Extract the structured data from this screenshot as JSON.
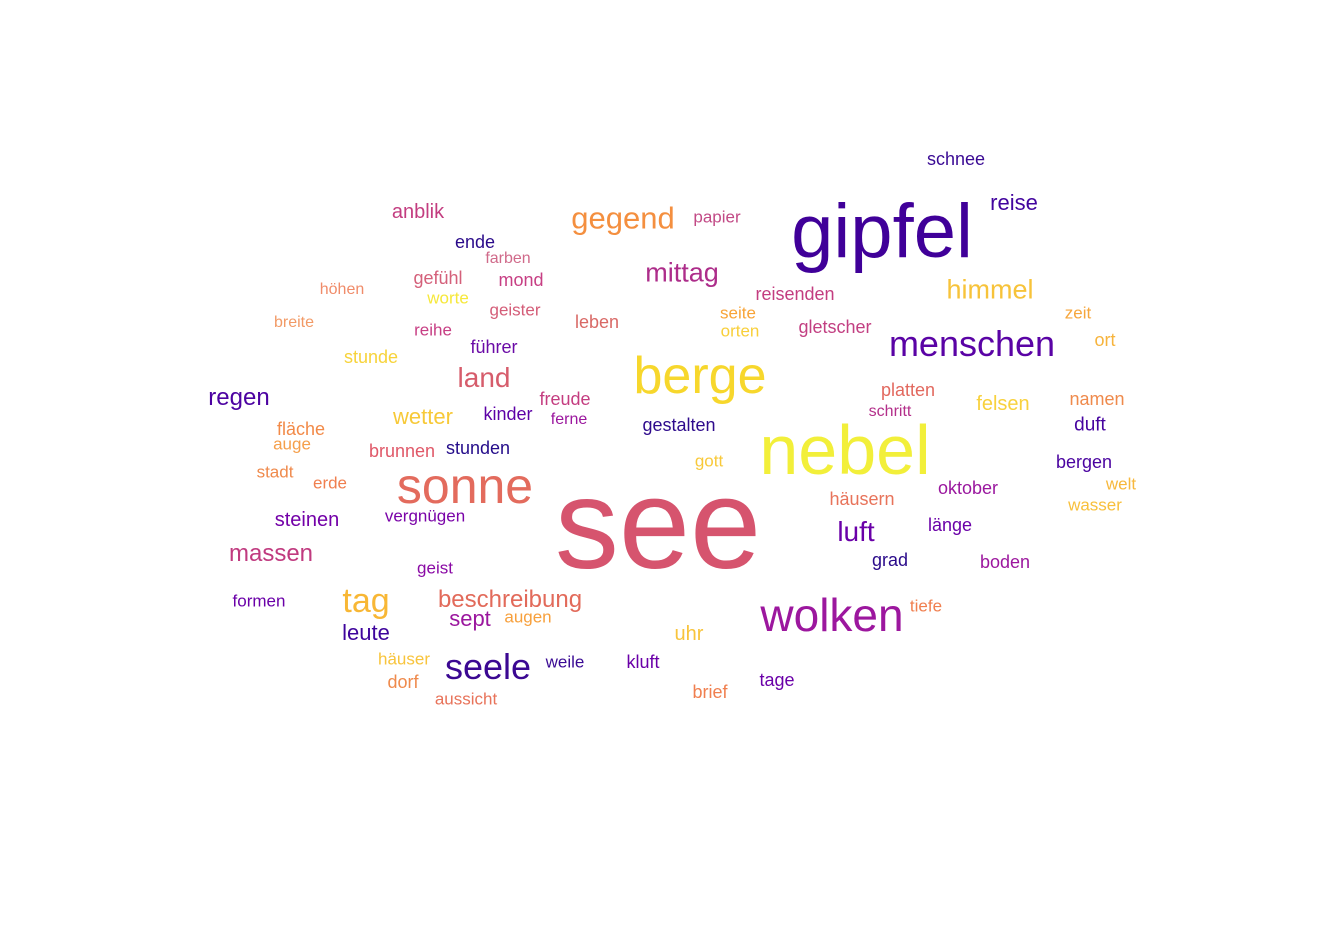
{
  "words": [
    {
      "text": "see",
      "color": "#d6546e"
    },
    {
      "text": "nebel",
      "color": "#f2ef3a"
    },
    {
      "text": "gipfel",
      "color": "#400099"
    },
    {
      "text": "berge",
      "color": "#f7d72c"
    },
    {
      "text": "sonne",
      "color": "#e36b5d"
    },
    {
      "text": "wolken",
      "color": "#9c179e"
    },
    {
      "text": "menschen",
      "color": "#5a03a5"
    },
    {
      "text": "seele",
      "color": "#3b0892"
    },
    {
      "text": "gegend",
      "color": "#f48f3f"
    },
    {
      "text": "tag",
      "color": "#f8b735"
    },
    {
      "text": "mittag",
      "color": "#ad2d8a"
    },
    {
      "text": "himmel",
      "color": "#f7c33a"
    },
    {
      "text": "land",
      "color": "#d65c6b"
    },
    {
      "text": "luft",
      "color": "#6a00a8"
    },
    {
      "text": "massen",
      "color": "#c03a7f"
    },
    {
      "text": "beschreibung",
      "color": "#e26a5a"
    },
    {
      "text": "regen",
      "color": "#4c02a1"
    },
    {
      "text": "sept",
      "color": "#9b179e"
    },
    {
      "text": "leute",
      "color": "#3e049c"
    },
    {
      "text": "reise",
      "color": "#42049e"
    },
    {
      "text": "wetter",
      "color": "#f7c938"
    },
    {
      "text": "steinen",
      "color": "#7301a8"
    },
    {
      "text": "felsen",
      "color": "#f8d13d"
    },
    {
      "text": "anblik",
      "color": "#c33d80"
    },
    {
      "text": "uhr",
      "color": "#f8c43c"
    },
    {
      "text": "schnee",
      "color": "#3a0a94"
    },
    {
      "text": "papier",
      "color": "#c24a86"
    },
    {
      "text": "ende",
      "color": "#2a0a8a"
    },
    {
      "text": "farben",
      "color": "#d06a8a"
    },
    {
      "text": "gefühl",
      "color": "#d4607a"
    },
    {
      "text": "mond",
      "color": "#c73f84"
    },
    {
      "text": "höhen",
      "color": "#f08c6a"
    },
    {
      "text": "worte",
      "color": "#f6e83a"
    },
    {
      "text": "geister",
      "color": "#d45d78"
    },
    {
      "text": "reisenden",
      "color": "#c33d80"
    },
    {
      "text": "zeit",
      "color": "#f6a63c"
    },
    {
      "text": "breite",
      "color": "#f29a66"
    },
    {
      "text": "reihe",
      "color": "#c73f84"
    },
    {
      "text": "leben",
      "color": "#d96966"
    },
    {
      "text": "seite",
      "color": "#f8a438"
    },
    {
      "text": "orten",
      "color": "#f8cf3a"
    },
    {
      "text": "gletscher",
      "color": "#c23f82"
    },
    {
      "text": "ort",
      "color": "#f7b43c"
    },
    {
      "text": "stunde",
      "color": "#f7d33a"
    },
    {
      "text": "führer",
      "color": "#6a0aa6"
    },
    {
      "text": "platten",
      "color": "#e2685e"
    },
    {
      "text": "namen",
      "color": "#ef8a4c"
    },
    {
      "text": "freude",
      "color": "#c43d80"
    },
    {
      "text": "schritt",
      "color": "#b32f8a"
    },
    {
      "text": "fläche",
      "color": "#f28a48"
    },
    {
      "text": "kinder",
      "color": "#5c01a6"
    },
    {
      "text": "ferne",
      "color": "#9b179e"
    },
    {
      "text": "gestalten",
      "color": "#2e0a8c"
    },
    {
      "text": "duft",
      "color": "#46039f"
    },
    {
      "text": "auge",
      "color": "#f59f4a"
    },
    {
      "text": "brunnen",
      "color": "#e05868"
    },
    {
      "text": "stunden",
      "color": "#240c8a"
    },
    {
      "text": "gott",
      "color": "#f8c93a"
    },
    {
      "text": "bergen",
      "color": "#4a03a0"
    },
    {
      "text": "stadt",
      "color": "#ef8a4c"
    },
    {
      "text": "erde",
      "color": "#f07f4f"
    },
    {
      "text": "welt",
      "color": "#f7b83c"
    },
    {
      "text": "häusern",
      "color": "#e8735a"
    },
    {
      "text": "oktober",
      "color": "#9a179e"
    },
    {
      "text": "wasser",
      "color": "#f8c03c"
    },
    {
      "text": "vergnügen",
      "color": "#7a03a8"
    },
    {
      "text": "länge",
      "color": "#6a00a8"
    },
    {
      "text": "grad",
      "color": "#2a0a8a"
    },
    {
      "text": "boden",
      "color": "#9c179e"
    },
    {
      "text": "geist",
      "color": "#8a0aa5"
    },
    {
      "text": "formen",
      "color": "#6a00a8"
    },
    {
      "text": "tiefe",
      "color": "#f07f4f"
    },
    {
      "text": "augen",
      "color": "#f7a03c"
    },
    {
      "text": "häuser",
      "color": "#f8c43c"
    },
    {
      "text": "weile",
      "color": "#3a0a94"
    },
    {
      "text": "kluft",
      "color": "#6a00a8"
    },
    {
      "text": "dorf",
      "color": "#ef8a4c"
    },
    {
      "text": "tage",
      "color": "#6a00a8"
    },
    {
      "text": "aussicht",
      "color": "#e8735a"
    },
    {
      "text": "brief",
      "color": "#f07f4f"
    }
  ]
}
